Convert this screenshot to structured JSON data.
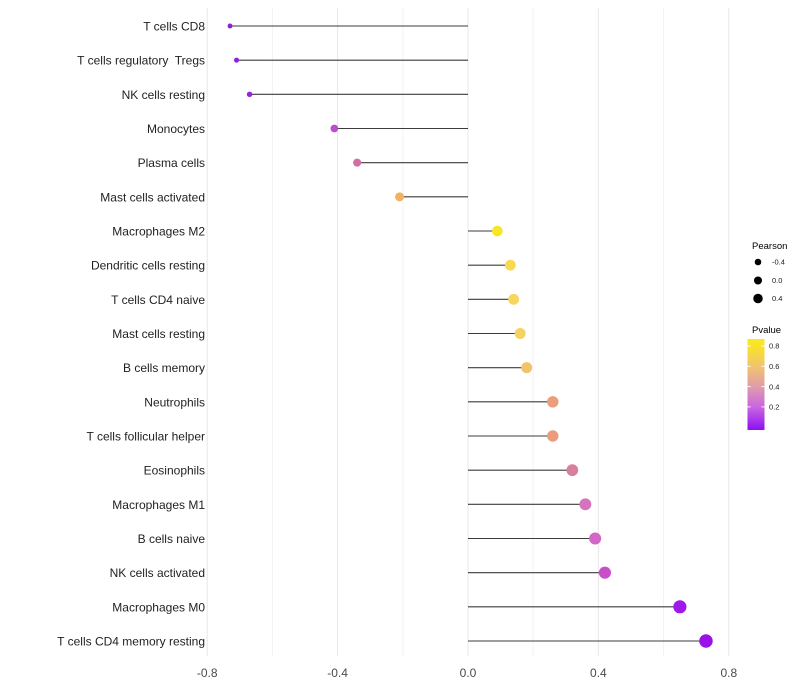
{
  "chart_data": {
    "type": "scatter",
    "subtype": "lollipop",
    "title": "",
    "xlabel": "",
    "ylabel": "",
    "xlim": [
      -0.95,
      0.95
    ],
    "x_ticks": [
      -0.8,
      -0.4,
      0.0,
      0.4,
      0.8
    ],
    "x_tick_labels": [
      "-0.8",
      "-0.4",
      "0.0",
      "0.4",
      "0.8"
    ],
    "grid": "vertical gridlines every 0.2, light gray, no axis lines",
    "baseline": 0.0,
    "stem_color": "#3c3c3c",
    "rows": [
      {
        "label": "T cells CD8",
        "pearson": -0.73,
        "pvalue": 0.12,
        "color": "#8d20d4"
      },
      {
        "label": "T cells regulatory  Tregs",
        "pearson": -0.71,
        "pvalue": 0.12,
        "color": "#8f22d6"
      },
      {
        "label": "NK cells resting",
        "pearson": -0.67,
        "pvalue": 0.14,
        "color": "#9527d8"
      },
      {
        "label": "Monocytes",
        "pearson": -0.41,
        "pvalue": 0.28,
        "color": "#bb4ecd"
      },
      {
        "label": "Plasma cells",
        "pearson": -0.34,
        "pvalue": 0.43,
        "color": "#d06fa6"
      },
      {
        "label": "Mast cells activated",
        "pearson": -0.21,
        "pvalue": 0.62,
        "color": "#f2b266"
      },
      {
        "label": "Macrophages M2",
        "pearson": 0.09,
        "pvalue": 0.8,
        "color": "#f6e626"
      },
      {
        "label": "Dendritic cells resting",
        "pearson": 0.13,
        "pvalue": 0.73,
        "color": "#f7da52"
      },
      {
        "label": "T cells CD4 naive",
        "pearson": 0.14,
        "pvalue": 0.72,
        "color": "#f6d65e"
      },
      {
        "label": "Mast cells resting",
        "pearson": 0.16,
        "pvalue": 0.71,
        "color": "#f5d362"
      },
      {
        "label": "B cells memory",
        "pearson": 0.18,
        "pvalue": 0.66,
        "color": "#f0c46c"
      },
      {
        "label": "Neutrophils",
        "pearson": 0.26,
        "pvalue": 0.55,
        "color": "#eb9d7c"
      },
      {
        "label": "T cells follicular helper",
        "pearson": 0.26,
        "pvalue": 0.55,
        "color": "#eb9c7c"
      },
      {
        "label": "Eosinophils",
        "pearson": 0.32,
        "pvalue": 0.46,
        "color": "#d87f9f"
      },
      {
        "label": "Macrophages M1",
        "pearson": 0.36,
        "pvalue": 0.36,
        "color": "#d573be"
      },
      {
        "label": "B cells naive",
        "pearson": 0.39,
        "pvalue": 0.33,
        "color": "#d366c6"
      },
      {
        "label": "NK cells activated",
        "pearson": 0.42,
        "pvalue": 0.29,
        "color": "#c94fc9"
      },
      {
        "label": "Macrophages M0",
        "pearson": 0.65,
        "pvalue": 0.1,
        "color": "#a019e8"
      },
      {
        "label": "T cells CD4 memory resting",
        "pearson": 0.73,
        "pvalue": 0.08,
        "color": "#9b10e8"
      }
    ],
    "legend": {
      "size": {
        "title": "Pearson",
        "entries": [
          {
            "label": "-0.4",
            "value": -0.4
          },
          {
            "label": "0.0",
            "value": 0.0
          },
          {
            "label": "0.4",
            "value": 0.4
          }
        ],
        "dot_color": "#000000"
      },
      "color": {
        "title": "Pvalue",
        "tick_labels": [
          "0.8",
          "0.6",
          "0.4",
          "0.2"
        ],
        "gradient_top_to_bottom": [
          {
            "offset": 0.0,
            "color": "#f9e921"
          },
          {
            "offset": 0.1,
            "color": "#f8e02e"
          },
          {
            "offset": 0.3,
            "color": "#f2c46d"
          },
          {
            "offset": 0.52,
            "color": "#e09daa"
          },
          {
            "offset": 0.75,
            "color": "#c966e2"
          },
          {
            "offset": 1.0,
            "color": "#8d0ff2"
          }
        ]
      }
    }
  }
}
